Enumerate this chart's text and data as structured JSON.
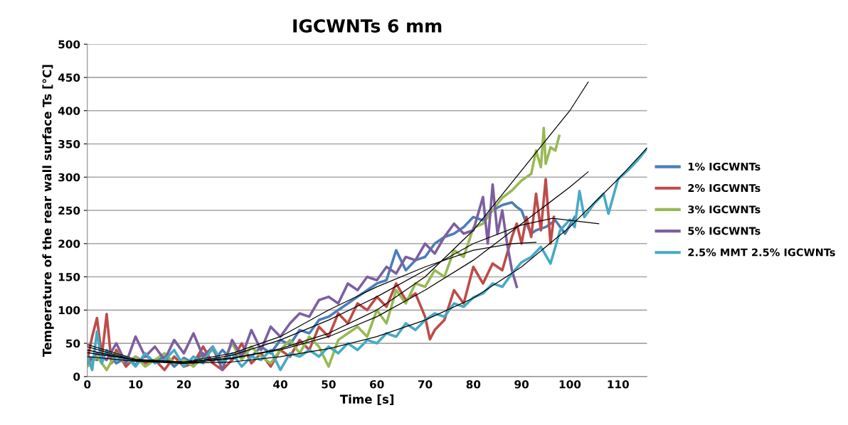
{
  "chart_data": {
    "type": "line",
    "title": "IGCWNTs 6 mm",
    "xlabel": "Time [s]",
    "ylabel": "Temperature of the rear wall surface Ts [°C]",
    "xlim": [
      0,
      116
    ],
    "xticks": [
      0,
      10,
      20,
      30,
      40,
      50,
      60,
      70,
      80,
      90,
      100,
      110
    ],
    "ylim": [
      0,
      500
    ],
    "yticks": [
      0,
      50,
      100,
      150,
      200,
      250,
      300,
      350,
      400,
      450,
      500
    ],
    "grid": "y",
    "legend": "right",
    "marker": "none",
    "line_style": "solid",
    "series": [
      {
        "name": "1% IGCWNTs",
        "color": "#4a7ebb",
        "x": [
          0,
          2,
          4,
          6,
          8,
          10,
          12,
          14,
          16,
          18,
          20,
          22,
          24,
          26,
          28,
          30,
          32,
          34,
          36,
          38,
          40,
          42,
          44,
          46,
          48,
          50,
          52,
          54,
          56,
          58,
          60,
          62,
          64,
          66,
          68,
          70,
          72,
          74,
          76,
          78,
          80,
          82,
          84,
          86,
          88,
          89,
          90,
          91,
          92,
          93,
          95,
          97,
          99,
          101
        ],
        "values": [
          30,
          25,
          35,
          20,
          28,
          18,
          32,
          22,
          30,
          15,
          28,
          20,
          35,
          22,
          40,
          25,
          38,
          30,
          45,
          35,
          55,
          48,
          70,
          65,
          85,
          90,
          100,
          110,
          120,
          130,
          140,
          145,
          190,
          160,
          175,
          180,
          200,
          210,
          215,
          225,
          240,
          235,
          250,
          258,
          262,
          255,
          250,
          230,
          215,
          220,
          225,
          235,
          215,
          240
        ]
      },
      {
        "name": "2% IGCWNTs",
        "color": "#be4b48",
        "x": [
          0,
          1,
          2,
          3,
          4,
          5,
          6,
          8,
          10,
          12,
          14,
          16,
          18,
          20,
          22,
          24,
          26,
          28,
          30,
          32,
          34,
          36,
          38,
          40,
          42,
          44,
          46,
          48,
          50,
          52,
          54,
          56,
          58,
          60,
          62,
          64,
          66,
          68,
          70,
          71,
          72,
          74,
          76,
          78,
          80,
          82,
          84,
          86,
          88,
          89,
          90,
          91,
          92,
          93,
          94,
          95,
          96,
          96.7
        ],
        "values": [
          25,
          60,
          88,
          30,
          94,
          20,
          40,
          15,
          30,
          20,
          25,
          10,
          30,
          15,
          20,
          45,
          20,
          10,
          25,
          50,
          20,
          35,
          15,
          40,
          30,
          55,
          40,
          75,
          60,
          95,
          80,
          110,
          100,
          120,
          105,
          140,
          115,
          125,
          90,
          56,
          70,
          85,
          130,
          110,
          165,
          140,
          170,
          160,
          210,
          230,
          200,
          240,
          210,
          275,
          220,
          297,
          200,
          240
        ]
      },
      {
        "name": "3% IGCWNTs",
        "color": "#98b954",
        "x": [
          0,
          2,
          4,
          6,
          8,
          10,
          12,
          14,
          16,
          18,
          20,
          22,
          24,
          26,
          28,
          30,
          32,
          34,
          36,
          38,
          40,
          42,
          44,
          46,
          48,
          50,
          52,
          54,
          56,
          58,
          60,
          62,
          64,
          66,
          68,
          70,
          72,
          74,
          76,
          78,
          80,
          82,
          84,
          86,
          88,
          90,
          92,
          93,
          94,
          94.6,
          95,
          96,
          97,
          97.8
        ],
        "values": [
          15,
          30,
          10,
          35,
          20,
          30,
          15,
          25,
          35,
          20,
          25,
          15,
          30,
          40,
          20,
          50,
          25,
          45,
          30,
          20,
          40,
          55,
          35,
          60,
          45,
          15,
          55,
          65,
          75,
          60,
          100,
          80,
          130,
          110,
          140,
          135,
          160,
          150,
          190,
          180,
          224,
          230,
          250,
          269,
          280,
          295,
          305,
          340,
          315,
          374,
          320,
          345,
          340,
          362
        ]
      },
      {
        "name": "5% IGCWNTs",
        "color": "#7d5fa0",
        "x": [
          0,
          2,
          4,
          6,
          8,
          10,
          12,
          14,
          16,
          18,
          20,
          22,
          24,
          26,
          28,
          30,
          32,
          34,
          36,
          38,
          40,
          42,
          44,
          46,
          48,
          50,
          52,
          54,
          56,
          58,
          60,
          62,
          64,
          66,
          68,
          70,
          72,
          74,
          76,
          78,
          80,
          82,
          83,
          84,
          85,
          86,
          87,
          88,
          89
        ],
        "values": [
          20,
          35,
          25,
          50,
          20,
          60,
          30,
          45,
          25,
          55,
          35,
          65,
          30,
          45,
          10,
          55,
          30,
          70,
          40,
          75,
          60,
          80,
          95,
          90,
          115,
          120,
          110,
          140,
          130,
          150,
          145,
          165,
          155,
          180,
          175,
          200,
          185,
          210,
          230,
          215,
          220,
          270,
          200,
          289,
          215,
          250,
          200,
          160,
          135
        ]
      },
      {
        "name": "2.5% MMT 2.5% IGCWNTs",
        "color": "#46aac5",
        "x": [
          0,
          1,
          2,
          3,
          4,
          6,
          8,
          10,
          12,
          14,
          16,
          18,
          20,
          22,
          24,
          26,
          28,
          30,
          32,
          34,
          36,
          38,
          40,
          42,
          44,
          46,
          48,
          50,
          52,
          54,
          56,
          58,
          60,
          62,
          64,
          66,
          68,
          70,
          72,
          74,
          76,
          78,
          80,
          82,
          84,
          86,
          88,
          90,
          92,
          94,
          96,
          98,
          100,
          101,
          102,
          103,
          105,
          107,
          108,
          110,
          112,
          114,
          115.9
        ],
        "values": [
          30,
          10,
          68,
          20,
          40,
          25,
          30,
          15,
          35,
          20,
          25,
          40,
          15,
          30,
          20,
          45,
          20,
          35,
          15,
          30,
          25,
          40,
          10,
          35,
          30,
          40,
          30,
          45,
          35,
          50,
          40,
          55,
          50,
          65,
          60,
          80,
          70,
          85,
          95,
          90,
          110,
          105,
          119,
          125,
          140,
          135,
          155,
          172,
          180,
          195,
          170,
          220,
          236,
          225,
          279,
          240,
          260,
          275,
          245,
          297,
          310,
          325,
          342
        ]
      },
      {
        "color": "#000000",
        "x": [
          0,
          10,
          20,
          30,
          40,
          50,
          60,
          70,
          80,
          90,
          100,
          103.8
        ],
        "values": [
          40,
          24,
          20,
          27,
          42,
          65,
          100,
          150,
          220,
          310,
          400,
          443
        ]
      },
      {
        "color": "#000000",
        "x": [
          0,
          10,
          20,
          30,
          40,
          50,
          60,
          70,
          80,
          90,
          100,
          103.8
        ],
        "values": [
          36,
          25,
          22,
          28,
          40,
          60,
          90,
          130,
          175,
          230,
          285,
          308
        ]
      },
      {
        "color": "#000000",
        "x": [
          0,
          10,
          20,
          30,
          40,
          50,
          60,
          70,
          80,
          90,
          96.4,
          106
        ],
        "values": [
          45,
          24,
          20,
          32,
          55,
          85,
          120,
          160,
          200,
          228,
          238,
          230
        ]
      },
      {
        "color": "#000000",
        "x": [
          0,
          10,
          20,
          30,
          40,
          50,
          60,
          70,
          80,
          88,
          93
        ],
        "values": [
          48,
          26,
          22,
          35,
          60,
          100,
          135,
          165,
          190,
          200,
          202
        ]
      },
      {
        "color": "#000000",
        "x": [
          0,
          10,
          20,
          30,
          40,
          50,
          60,
          70,
          80,
          90,
          100,
          110,
          116
        ],
        "values": [
          30,
          23,
          20,
          22,
          30,
          42,
          60,
          85,
          118,
          165,
          225,
          297,
          344
        ]
      }
    ]
  }
}
